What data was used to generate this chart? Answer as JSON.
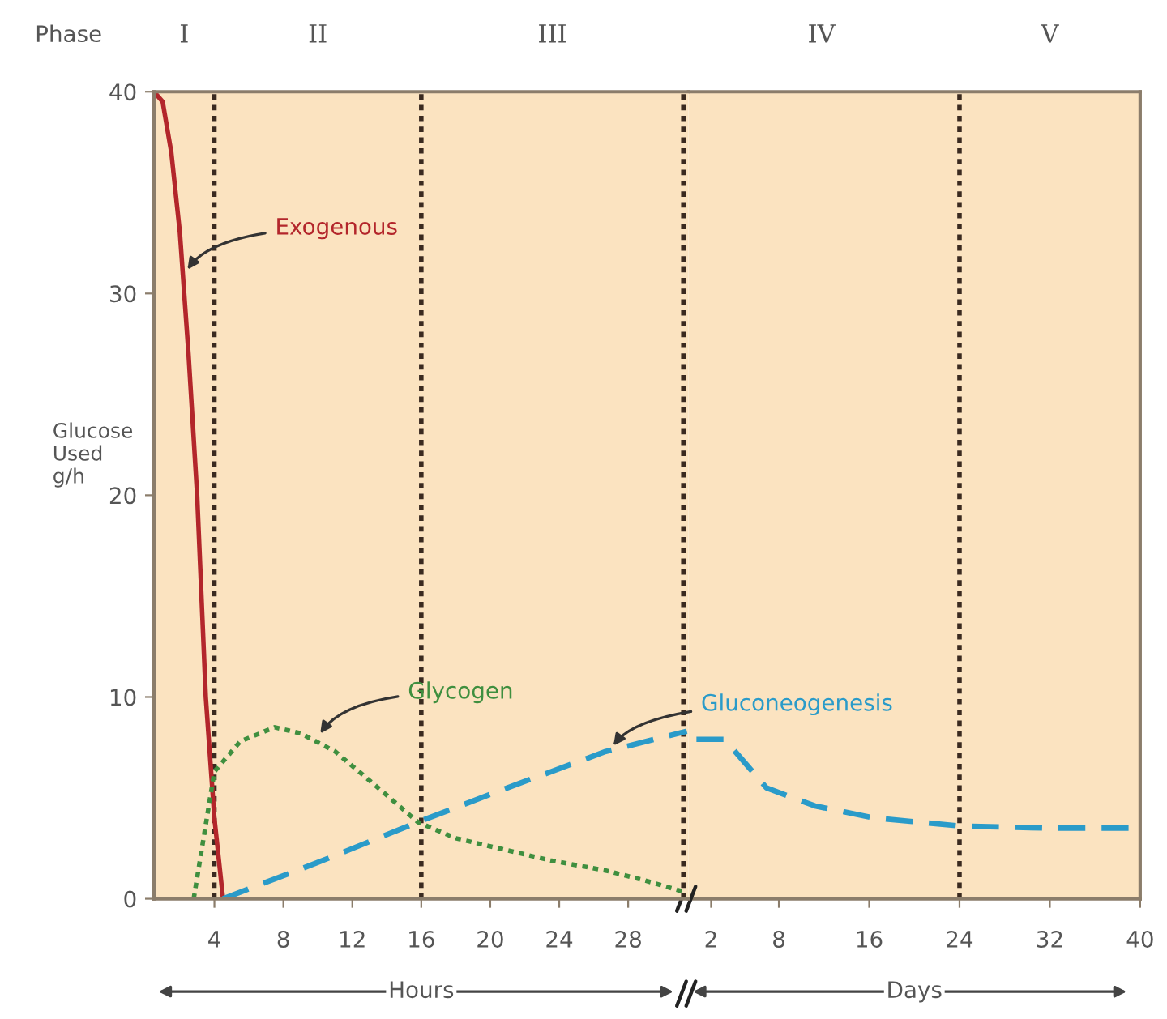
{
  "chart_data": [
    {
      "type": "line",
      "xlabel": "Hours",
      "ylabel": "Glucose\nUsed\ng/h",
      "xlim": [
        0.5,
        31.5
      ],
      "xticks": [
        4,
        8,
        12,
        16,
        20,
        24,
        28
      ],
      "ylim": [
        0,
        40
      ],
      "yticks": [
        0,
        10,
        20,
        30,
        40
      ],
      "series": [
        {
          "color": "#b3262b",
          "line_style": "solid",
          "x": [
            0.5,
            1,
            1.5,
            2,
            2.5,
            3,
            3.5,
            4,
            4.5
          ],
          "values": [
            40,
            39.5,
            37,
            33,
            27,
            20,
            10,
            4,
            0
          ]
        },
        {
          "color": "#3f8f3f",
          "line_style": "dotted",
          "x": [
            2.8,
            4,
            5.5,
            7.5,
            9,
            11,
            13.5,
            15.8,
            18,
            20.5,
            23.5,
            26.7,
            29,
            31.4
          ],
          "values": [
            0,
            6.3,
            7.8,
            8.5,
            8.2,
            7.3,
            5.5,
            3.8,
            3,
            2.5,
            1.9,
            1.4,
            0.9,
            0.3
          ]
        },
        {
          "color": "#2a9bc9",
          "line_style": "dashed",
          "x": [
            4.5,
            10,
            15.8,
            21,
            26.7,
            31.4
          ],
          "values": [
            0,
            1.8,
            3.8,
            5.5,
            7.3,
            8.3
          ]
        }
      ],
      "ref_lines": [
        {
          "axis": "x",
          "value": 4,
          "color": "#3a2a20",
          "line_style": "dotted"
        },
        {
          "axis": "x",
          "value": 16,
          "color": "#3a2a20",
          "line_style": "dotted"
        },
        {
          "axis": "x",
          "value": 31.2,
          "color": "#3a2a20",
          "line_style": "dotted"
        }
      ],
      "annotations": [
        "Phase",
        "I",
        "II",
        "III",
        "IV",
        "V",
        {
          "text": "Exogenous",
          "x": 2.3,
          "y": 31
        },
        {
          "text": "Glycogen",
          "x": 10,
          "y": 8
        },
        {
          "text": "Gluconeogenesis",
          "x": 27,
          "y": 7.4
        }
      ],
      "legend": false,
      "grid": false,
      "marker": "none"
    },
    {
      "type": "line",
      "xlabel": "Days",
      "xlim": [
        0,
        40
      ],
      "xticks": [
        2,
        8,
        16,
        24,
        32,
        40
      ],
      "ylim": [
        0,
        40
      ],
      "tick_labels": "x",
      "series": [
        {
          "color": "#2a9bc9",
          "line_style": "dashed",
          "x": [
            0.7,
            3.2,
            6.9,
            11.2,
            16.5,
            24.2,
            32,
            40
          ],
          "values": [
            7.9,
            7.9,
            5.5,
            4.6,
            4.0,
            3.6,
            3.5,
            3.5
          ]
        }
      ],
      "ref_lines": [
        {
          "axis": "x",
          "value": 24,
          "color": "#3a2a20",
          "line_style": "dotted"
        }
      ],
      "legend": false,
      "grid": false,
      "marker": "none"
    }
  ]
}
